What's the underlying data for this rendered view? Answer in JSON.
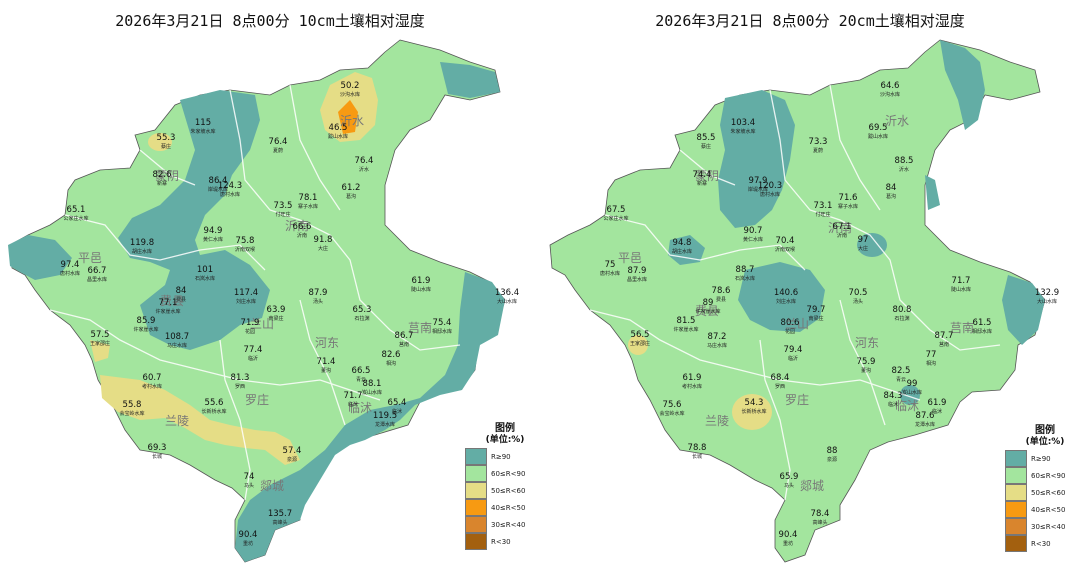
{
  "colors": {
    "r_ge_90": "#63ADA5",
    "r_60_90": "#A3E59E",
    "r_50_60": "#E5DD86",
    "r_40_50": "#F79A12",
    "r_30_40": "#D9852D",
    "r_lt_30": "#A3600F",
    "base": "#9ACB84",
    "border": "#ffffff"
  },
  "legend": {
    "title": "图例",
    "unit": "(单位:%)",
    "items": [
      {
        "label": "R≥90",
        "color_key": "r_ge_90"
      },
      {
        "label": "60≤R<90",
        "color_key": "r_60_90"
      },
      {
        "label": "50≤R<60",
        "color_key": "r_50_60"
      },
      {
        "label": "40≤R<50",
        "color_key": "r_40_50"
      },
      {
        "label": "30≤R<40",
        "color_key": "r_30_40"
      },
      {
        "label": "R<30",
        "color_key": "r_lt_30"
      }
    ]
  },
  "maps": [
    {
      "title": "2026年3月21日 8点00分 10cm土壤相对湿度",
      "counties": [
        "沂水",
        "蒙阴",
        "平邑",
        "费县",
        "兰山",
        "河东",
        "莒南",
        "罗庄",
        "兰陵",
        "郯城",
        "沂南",
        "临沭"
      ],
      "stations": [
        {
          "value": "50.2",
          "name": "沙沟水库"
        },
        {
          "value": "115",
          "name": "朱家坡水库"
        },
        {
          "value": "46.5",
          "name": "跋山水库"
        },
        {
          "value": "55.3",
          "name": "蔡庄"
        },
        {
          "value": "76.4",
          "name": "夏蔚"
        },
        {
          "value": "76.4",
          "name": "沂水"
        },
        {
          "value": "82.6",
          "name": "新寨"
        },
        {
          "value": "86.4",
          "name": "岸堤水库"
        },
        {
          "value": "124.3",
          "name": "唐村水库"
        },
        {
          "value": "61.2",
          "name": "葛沟"
        },
        {
          "value": "65.1",
          "name": "公家庄水库"
        },
        {
          "value": "78.1",
          "name": "寨子水库"
        },
        {
          "value": "73.5",
          "name": "付旺庄"
        },
        {
          "value": "66.6",
          "name": "沂南"
        },
        {
          "value": "94.9",
          "name": "黄仁水库"
        },
        {
          "value": "119.8",
          "name": "胡庄水库"
        },
        {
          "value": "75.8",
          "name": "沂南双堠"
        },
        {
          "value": "91.8",
          "name": "大庄"
        },
        {
          "value": "97.4",
          "name": "唐村水库"
        },
        {
          "value": "66.7",
          "name": "昌里水库"
        },
        {
          "value": "101",
          "name": "石岚水库"
        },
        {
          "value": "61.9",
          "name": "陡山水库"
        },
        {
          "value": "136.4",
          "name": "大山水库"
        },
        {
          "value": "84",
          "name": "费县"
        },
        {
          "value": "77.1",
          "name": "许家崖水库"
        },
        {
          "value": "117.4",
          "name": "刘庄水库"
        },
        {
          "value": "87.9",
          "name": "汤头"
        },
        {
          "value": "65.3",
          "name": "石拉渊"
        },
        {
          "value": "85.9",
          "name": "许家崖水库"
        },
        {
          "value": "63.9",
          "name": "南梁庄"
        },
        {
          "value": "75.4",
          "name": "相邸水库"
        },
        {
          "value": "57.5",
          "name": "王家邵庄"
        },
        {
          "value": "108.7",
          "name": "马庄水库"
        },
        {
          "value": "71.9",
          "name": "花园"
        },
        {
          "value": "86.7",
          "name": "莒南"
        },
        {
          "value": "77.4",
          "name": "临沂"
        },
        {
          "value": "82.6",
          "name": "相沟"
        },
        {
          "value": "71.4",
          "name": "董沟"
        },
        {
          "value": "60.7",
          "name": "考村水库"
        },
        {
          "value": "81.3",
          "name": "罗西"
        },
        {
          "value": "66.5",
          "name": "青云"
        },
        {
          "value": "88.1",
          "name": "岌山水库"
        },
        {
          "value": "55.8",
          "name": "会宝岭水库"
        },
        {
          "value": "55.6",
          "name": "长新桥水库"
        },
        {
          "value": "71.7",
          "name": "临沭"
        },
        {
          "value": "65.4",
          "name": "临沭"
        },
        {
          "value": "119.5",
          "name": "龙潭水库"
        },
        {
          "value": "69.3",
          "name": "长城"
        },
        {
          "value": "57.4",
          "name": "泉源"
        },
        {
          "value": "74",
          "name": "马头"
        },
        {
          "value": "135.7",
          "name": "高峰头"
        },
        {
          "value": "90.4",
          "name": "重坊"
        }
      ]
    },
    {
      "title": "2026年3月21日 8点00分 20cm土壤相对湿度",
      "counties": [
        "沂水",
        "蒙阴",
        "平邑",
        "费县",
        "兰山",
        "河东",
        "莒南",
        "罗庄",
        "兰陵",
        "郯城",
        "沂南",
        "临沭"
      ],
      "stations": [
        {
          "value": "64.6",
          "name": "沙沟水库"
        },
        {
          "value": "103.4",
          "name": "朱家坡水库"
        },
        {
          "value": "69.5",
          "name": "跋山水库"
        },
        {
          "value": "85.5",
          "name": "蔡庄"
        },
        {
          "value": "73.3",
          "name": "夏蔚"
        },
        {
          "value": "88.5",
          "name": "沂水"
        },
        {
          "value": "74.4",
          "name": "新寨"
        },
        {
          "value": "97.9",
          "name": "岸堤水库"
        },
        {
          "value": "120.3",
          "name": "唐村水库"
        },
        {
          "value": "84",
          "name": "葛沟"
        },
        {
          "value": "67.5",
          "name": "公家庄水库"
        },
        {
          "value": "71.6",
          "name": "寨子水库"
        },
        {
          "value": "73.1",
          "name": "付旺庄"
        },
        {
          "value": "67.1",
          "name": "沂南"
        },
        {
          "value": "90.7",
          "name": "黄仁水库"
        },
        {
          "value": "94.8",
          "name": "胡庄水库"
        },
        {
          "value": "70.4",
          "name": "沂南双堠"
        },
        {
          "value": "97",
          "name": "大庄"
        },
        {
          "value": "75",
          "name": "唐村水库"
        },
        {
          "value": "87.9",
          "name": "昌里水库"
        },
        {
          "value": "88.7",
          "name": "石岚水库"
        },
        {
          "value": "71.7",
          "name": "陡山水库"
        },
        {
          "value": "132.9",
          "name": "大山水库"
        },
        {
          "value": "78.6",
          "name": "费县"
        },
        {
          "value": "89",
          "name": "许家崖水库"
        },
        {
          "value": "140.6",
          "name": "刘庄水库"
        },
        {
          "value": "70.5",
          "name": "汤头"
        },
        {
          "value": "80.8",
          "name": "石拉渊"
        },
        {
          "value": "81.5",
          "name": "许家崖水库"
        },
        {
          "value": "79.7",
          "name": "南梁庄"
        },
        {
          "value": "61.5",
          "name": "相邸水库"
        },
        {
          "value": "56.5",
          "name": "王家邵庄"
        },
        {
          "value": "87.2",
          "name": "马庄水库"
        },
        {
          "value": "80.6",
          "name": "花园"
        },
        {
          "value": "87.7",
          "name": "莒南"
        },
        {
          "value": "79.4",
          "name": "临沂"
        },
        {
          "value": "77",
          "name": "相沟"
        },
        {
          "value": "75.9",
          "name": "董沟"
        },
        {
          "value": "61.9",
          "name": "考村水库"
        },
        {
          "value": "68.4",
          "name": "罗西"
        },
        {
          "value": "82.5",
          "name": "青云"
        },
        {
          "value": "99",
          "name": "岌山水库"
        },
        {
          "value": "75.6",
          "name": "会宝岭水库"
        },
        {
          "value": "54.3",
          "name": "长新桥水库"
        },
        {
          "value": "84.3",
          "name": "临沭"
        },
        {
          "value": "61.9",
          "name": "临沭"
        },
        {
          "value": "87.6",
          "name": "龙潭水库"
        },
        {
          "value": "78.8",
          "name": "长城"
        },
        {
          "value": "88",
          "name": "泉源"
        },
        {
          "value": "65.9",
          "name": "马头"
        },
        {
          "value": "78.4",
          "name": "高峰头"
        },
        {
          "value": "90.4",
          "name": "重坊"
        }
      ]
    }
  ]
}
